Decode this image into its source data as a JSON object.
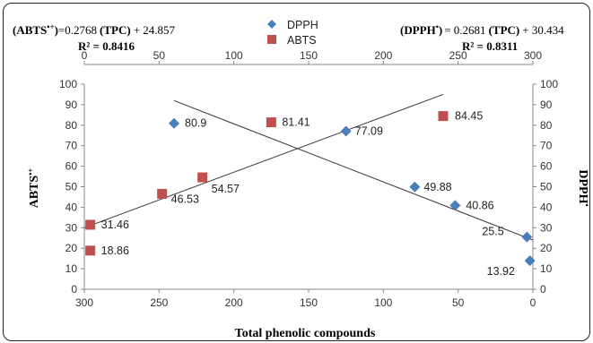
{
  "equations": {
    "abts_eq_prefix": "(ABTS",
    "abts_sup": "•+",
    "abts_eq_mid": ")",
    "abts_eq_rest": "=0.2768",
    "abts_tpc": "(TPC)",
    "abts_const": "+ 24.857",
    "abts_r2": "R² = 0.8416",
    "dpph_eq_prefix": "(DPPH",
    "dpph_sup": "•",
    "dpph_eq_mid": ")",
    "dpph_eq_rest": "= 0.2681",
    "dpph_tpc": "(TPC)",
    "dpph_const": "+ 30.434",
    "dpph_r2": "R² = 0.8311"
  },
  "chart_data": {
    "type": "scatter",
    "xlabel": "Total phenolic compounds",
    "ylabel_left": "ABTS•+",
    "ylabel_right": "DPPH•",
    "x_top_range": [
      0,
      300
    ],
    "x_bottom_range": [
      300,
      0
    ],
    "y_range": [
      0,
      100
    ],
    "x_ticks_top": [
      "0",
      "50",
      "100",
      "150",
      "200",
      "250",
      "300"
    ],
    "x_ticks_bottom": [
      "300",
      "250",
      "200",
      "150",
      "100",
      "50",
      "0"
    ],
    "y_ticks": [
      "0",
      "10",
      "20",
      "30",
      "40",
      "50",
      "60",
      "70",
      "80",
      "90",
      "100"
    ],
    "legend_position": "top-center",
    "grid": false,
    "series": [
      {
        "name": "DPPH",
        "marker": "diamond",
        "color": "#4a7ebb",
        "points": [
          {
            "x": 60,
            "y": 80.9,
            "label": "80.9"
          },
          {
            "x": 175,
            "y": 77.09,
            "label": "77.09"
          },
          {
            "x": 221,
            "y": 49.88,
            "label": "49.88"
          },
          {
            "x": 248,
            "y": 40.86,
            "label": "40.86"
          },
          {
            "x": 296,
            "y": 25.5,
            "label": "25.5"
          },
          {
            "x": 298,
            "y": 13.92,
            "label": "13.92"
          }
        ]
      },
      {
        "name": "ABTS",
        "marker": "square",
        "color": "#c0504d",
        "points": [
          {
            "x": 4,
            "y": 31.46,
            "label": "31.46"
          },
          {
            "x": 4,
            "y": 18.86,
            "label": "18.86"
          },
          {
            "x": 52,
            "y": 46.53,
            "label": "46.53"
          },
          {
            "x": 79,
            "y": 54.57,
            "label": "54.57"
          },
          {
            "x": 125,
            "y": 81.41,
            "label": "81.41"
          },
          {
            "x": 240,
            "y": 84.45,
            "label": "84.45"
          }
        ]
      }
    ],
    "trendlines": [
      {
        "series": "ABTS",
        "from": {
          "x": 0,
          "y": 30
        },
        "to": {
          "x": 240,
          "y": 95
        }
      },
      {
        "series": "DPPH",
        "from": {
          "x": 60,
          "y": 92
        },
        "to": {
          "x": 300,
          "y": 24
        }
      }
    ]
  }
}
